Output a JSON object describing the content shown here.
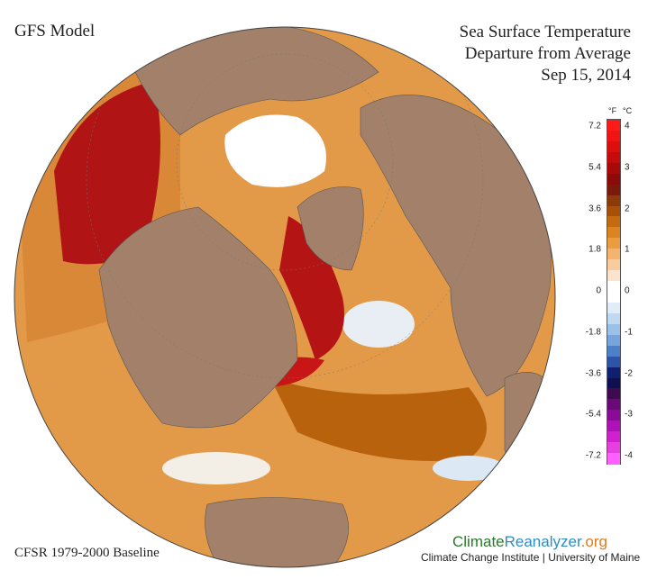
{
  "model_label": "GFS Model",
  "title": {
    "line1": "Sea Surface Temperature",
    "line2": "Departure from Average",
    "date": "Sep 15, 2014"
  },
  "baseline_label": "CFSR 1979-2000 Baseline",
  "brand": {
    "part1": "Climate",
    "part2": "Reanalyzer",
    "part3": ".org"
  },
  "institute": "Climate Change Institute | University of Maine",
  "legend": {
    "unit_f": "°F",
    "unit_c": "°C",
    "ticks": [
      {
        "f": "7.2",
        "c": "4"
      },
      {
        "f": "5.4",
        "c": "3"
      },
      {
        "f": "3.6",
        "c": "2"
      },
      {
        "f": "1.8",
        "c": "1"
      },
      {
        "f": "0",
        "c": "0"
      },
      {
        "f": "-1.8",
        "c": "-1"
      },
      {
        "f": "-3.6",
        "c": "-2"
      },
      {
        "f": "-5.4",
        "c": "-3"
      },
      {
        "f": "-7.2",
        "c": "-4"
      }
    ],
    "colors": [
      "#ff1a1a",
      "#f01414",
      "#dc0f0f",
      "#c40c0c",
      "#a80a0a",
      "#8c0a0a",
      "#7a1a0a",
      "#8c3a08",
      "#a85008",
      "#c46a10",
      "#dc8420",
      "#ec9c40",
      "#f4b470",
      "#f8cc9c",
      "#fce4cc",
      "#ffffff",
      "#ffffff",
      "#e0ecf8",
      "#c0d8f0",
      "#9cc0e8",
      "#78a4dc",
      "#4c80c8",
      "#2c54a8",
      "#102070",
      "#101050",
      "#400a50",
      "#6a0a78",
      "#8c0a98",
      "#b010b8",
      "#d020d0",
      "#e840e0",
      "#ff60ff"
    ]
  },
  "colors": {
    "land": "#a3806a",
    "warm": "#e0902c",
    "hot": "#c80e0e",
    "ice": "#ffffff",
    "cool": "#b8d4ec"
  }
}
